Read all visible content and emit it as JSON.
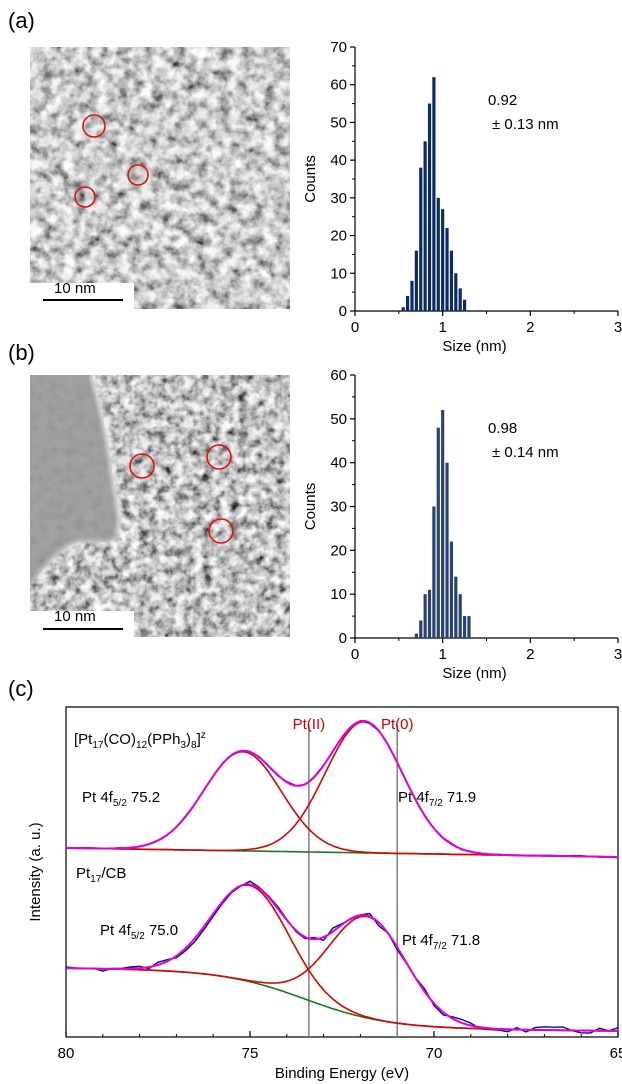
{
  "panels": {
    "a": "(a)",
    "b": "(b)",
    "c": "(c)"
  },
  "tem_images": [
    {
      "scale_bar": "10 nm",
      "style": "uniform-mottled"
    },
    {
      "scale_bar": "10 nm",
      "style": "carbon-support-edge"
    }
  ],
  "chart_data": [
    {
      "type": "bar",
      "xlabel": "Size (nm)",
      "ylabel": "Counts",
      "xlim": [
        0,
        3
      ],
      "ylim": [
        0,
        70
      ],
      "xticks": [
        0,
        1,
        2,
        3
      ],
      "yticks": [
        0,
        10,
        20,
        30,
        40,
        50,
        60,
        70
      ],
      "bin_width": 0.05,
      "x": [
        0.55,
        0.6,
        0.65,
        0.7,
        0.75,
        0.8,
        0.85,
        0.9,
        0.95,
        1.0,
        1.05,
        1.1,
        1.15,
        1.2,
        1.25,
        1.3,
        1.35
      ],
      "values": [
        1,
        4,
        8,
        16,
        38,
        45,
        55,
        62,
        30,
        27,
        22,
        16,
        10,
        6,
        3,
        0,
        0
      ],
      "annotation": [
        "0.92",
        "± 0.13 nm"
      ],
      "color": "#0b2a66"
    },
    {
      "type": "bar",
      "xlabel": "Size (nm)",
      "ylabel": "Counts",
      "xlim": [
        0,
        3
      ],
      "ylim": [
        0,
        60
      ],
      "xticks": [
        0,
        1,
        2,
        3
      ],
      "yticks": [
        0,
        10,
        20,
        30,
        40,
        50,
        60
      ],
      "bin_width": 0.05,
      "x": [
        0.7,
        0.75,
        0.8,
        0.85,
        0.9,
        0.95,
        1.0,
        1.05,
        1.1,
        1.15,
        1.2,
        1.25,
        1.3,
        1.35,
        1.4,
        1.45
      ],
      "values": [
        1,
        4,
        10,
        11,
        30,
        48,
        52,
        40,
        22,
        14,
        10,
        5,
        5,
        0,
        0,
        0
      ],
      "annotation": [
        "0.98",
        "± 0.14 nm"
      ],
      "color": "#2a4470"
    },
    {
      "type": "line",
      "xlabel": "Binding Energy (eV)",
      "ylabel": "Intensity (a. u.)",
      "xlim": [
        80,
        65
      ],
      "xticks": [
        80,
        75,
        70,
        65
      ],
      "vertical_lines": [
        {
          "x": 73.4,
          "label": "Pt(II)",
          "color": "#cc0000"
        },
        {
          "x": 71.0,
          "label": "Pt(0)",
          "color": "#cc0000"
        }
      ],
      "spectra": [
        {
          "sample_label": "[Pt17(CO)12(PPh3)8]z",
          "peaks": [
            {
              "label": "Pt 4f5/2 75.2",
              "center": 75.2,
              "amplitude": 0.62
            },
            {
              "label": "Pt 4f7/2 71.9",
              "center": 71.9,
              "amplitude": 0.82
            }
          ],
          "baseline_offset": 0.0
        },
        {
          "sample_label": "Pt17/CB",
          "peaks": [
            {
              "label": "Pt 4f5/2 75.0",
              "center": 75.0,
              "amplitude": 0.55
            },
            {
              "label": "Pt 4f7/2 71.8",
              "center": 71.8,
              "amplitude": 0.58
            }
          ],
          "baseline_offset": 0.0
        }
      ],
      "colors": {
        "data": "#0a0a8a",
        "fit_sum": "#e000e0",
        "components": "#dd0000",
        "background": "#1a7a1a",
        "reference": "#888888"
      }
    }
  ]
}
